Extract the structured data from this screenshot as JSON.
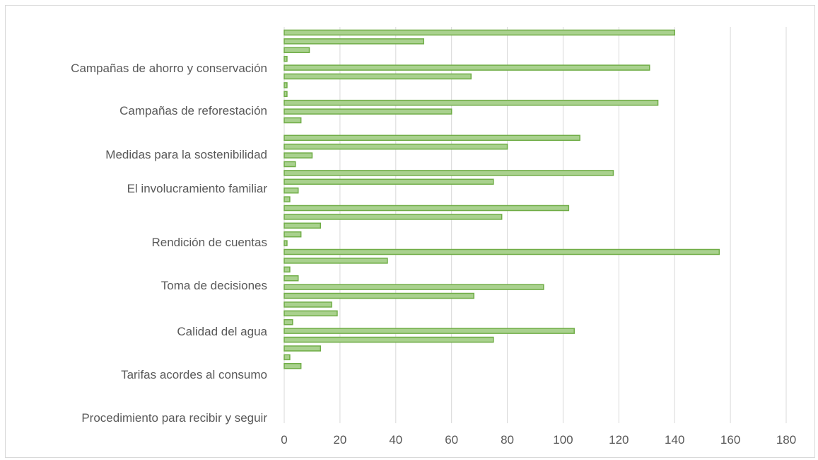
{
  "chart_data": {
    "type": "bar",
    "orientation": "horizontal",
    "bar_color": "#a9d18e",
    "bar_edge_color": "#70ad47",
    "grid_color": "#d9d9d9",
    "label_color": "#595959",
    "grid": true,
    "xlim": [
      0,
      180
    ],
    "xticks": [
      0,
      20,
      40,
      60,
      80,
      100,
      120,
      140,
      160,
      180
    ],
    "category_labels": [
      "Campañas de ahorro y conservación",
      "Campañas de reforestación",
      "Medidas para la sostenibilidad",
      "El involucramiento familiar",
      "Rendición de cuentas",
      "Toma de decisiones",
      "Calidad del agua",
      "Tarifas acordes al consumo",
      "Procedimiento para recibir y seguir"
    ],
    "values": [
      140,
      50,
      9,
      1,
      131,
      67,
      1,
      1,
      134,
      60,
      6,
      0,
      106,
      80,
      10,
      4,
      118,
      75,
      5,
      2,
      102,
      78,
      13,
      6,
      1,
      156,
      37,
      2,
      5,
      93,
      68,
      17,
      19,
      3,
      104,
      75,
      13,
      2,
      6
    ]
  }
}
